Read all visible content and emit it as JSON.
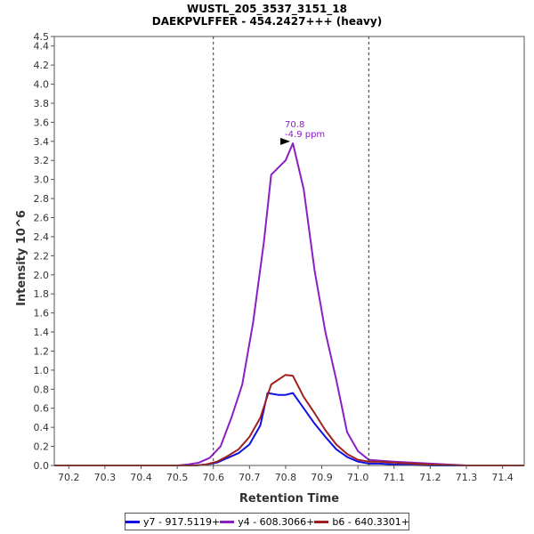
{
  "chart_data": {
    "type": "line",
    "title": "WUSTL_205_3537_3151_18",
    "subtitle": "DAEKPVLFFER - 454.2427+++ (heavy)",
    "xlabel": "Retention Time",
    "ylabel": "Intensity 10^6",
    "xlim": [
      70.16,
      71.46
    ],
    "ylim": [
      0,
      4.5
    ],
    "xticks": [
      "70.2",
      "70.3",
      "70.4",
      "70.5",
      "70.6",
      "70.7",
      "70.8",
      "70.9",
      "71.0",
      "71.1",
      "71.2",
      "71.3",
      "71.4"
    ],
    "yticks": [
      "0.0",
      "0.2",
      "0.4",
      "0.6",
      "0.8",
      "1.0",
      "1.2",
      "1.4",
      "1.6",
      "1.8",
      "2.0",
      "2.2",
      "2.4",
      "2.6",
      "2.8",
      "3.0",
      "3.2",
      "3.4",
      "3.6",
      "3.8",
      "4.0",
      "4.2",
      "4.4",
      "4.5"
    ],
    "boundaries": [
      70.6,
      71.03
    ],
    "peak_annotation": {
      "x": 70.82,
      "y": 3.4,
      "label1": "70.8",
      "label2": "-4.9 ppm",
      "color": "#8a1fc4"
    },
    "grid": false,
    "legend_position": "bottom",
    "series": [
      {
        "name": "y7 - 917.5119+",
        "color": "#1010e0",
        "x": [
          70.16,
          70.55,
          70.58,
          70.61,
          70.64,
          70.67,
          70.7,
          70.73,
          70.75,
          70.78,
          70.8,
          70.82,
          70.85,
          70.88,
          70.91,
          70.94,
          70.97,
          71.0,
          71.03,
          71.06,
          71.1,
          71.2,
          71.3,
          71.46
        ],
        "y": [
          0.0,
          0.0,
          0.01,
          0.03,
          0.08,
          0.13,
          0.22,
          0.42,
          0.76,
          0.74,
          0.74,
          0.76,
          0.6,
          0.44,
          0.3,
          0.17,
          0.09,
          0.04,
          0.02,
          0.02,
          0.01,
          0.0,
          0.0,
          0.0
        ]
      },
      {
        "name": "y4 - 608.3066+",
        "color": "#8a1fc4",
        "x": [
          70.16,
          70.5,
          70.53,
          70.56,
          70.59,
          70.62,
          70.65,
          70.68,
          70.71,
          70.74,
          70.76,
          70.8,
          70.82,
          70.85,
          70.88,
          70.91,
          70.94,
          70.97,
          71.0,
          71.03,
          71.06,
          71.1,
          71.2,
          71.3,
          71.46
        ],
        "y": [
          0.0,
          0.0,
          0.01,
          0.03,
          0.08,
          0.2,
          0.5,
          0.85,
          1.5,
          2.35,
          3.05,
          3.2,
          3.38,
          2.9,
          2.05,
          1.4,
          0.9,
          0.35,
          0.15,
          0.06,
          0.05,
          0.04,
          0.02,
          0.0,
          0.0
        ]
      },
      {
        "name": "b6 - 640.3301+",
        "color": "#a02020",
        "x": [
          70.16,
          70.55,
          70.58,
          70.61,
          70.64,
          70.67,
          70.7,
          70.73,
          70.76,
          70.8,
          70.82,
          70.85,
          70.88,
          70.91,
          70.94,
          70.97,
          71.0,
          71.03,
          71.06,
          71.1,
          71.2,
          71.3,
          71.46
        ],
        "y": [
          0.0,
          0.0,
          0.01,
          0.04,
          0.1,
          0.17,
          0.3,
          0.5,
          0.85,
          0.95,
          0.94,
          0.72,
          0.55,
          0.37,
          0.22,
          0.12,
          0.06,
          0.04,
          0.04,
          0.03,
          0.01,
          0.0,
          0.0
        ]
      }
    ]
  }
}
